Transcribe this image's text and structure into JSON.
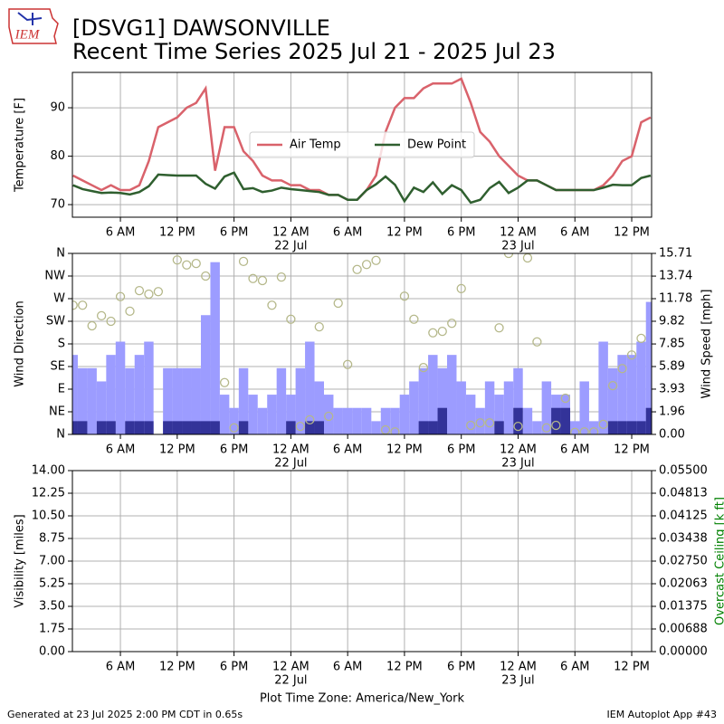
{
  "header": {
    "title": "[DSVG1] DAWSONVILLE",
    "subtitle": "Recent Time Series 2025 Jul 21 - 2025 Jul 23",
    "logo_text": "IEM"
  },
  "footer": {
    "generated": "Generated at 23 Jul 2025 2:00 PM CDT in 0.65s",
    "app": "IEM Autoplot App #43"
  },
  "chart_data": [
    {
      "type": "line",
      "ylabel": "Temperature [F]",
      "grid": true,
      "legend": "center",
      "x": [
        1,
        2,
        3,
        4,
        5,
        6,
        7,
        8,
        9,
        10,
        11,
        12,
        13,
        14,
        15,
        16,
        17,
        18,
        19,
        20,
        21,
        22,
        23,
        24,
        25,
        26,
        27,
        28,
        29,
        30,
        31,
        32,
        33,
        34,
        35,
        36,
        37,
        38,
        39,
        40,
        41,
        42,
        43,
        44,
        45,
        46,
        47,
        48,
        49,
        50,
        51,
        52,
        53,
        54,
        55,
        56,
        57,
        58,
        59,
        60,
        61,
        62
      ],
      "xlim": [
        0.93,
        62.1
      ],
      "xticks": [
        {
          "value": 6,
          "label": "6 AM"
        },
        {
          "value": 12,
          "label": "12 PM"
        },
        {
          "value": 18,
          "label": "6 PM"
        },
        {
          "value": 24,
          "label": "12 AM"
        },
        {
          "value": 30,
          "label": "6 AM"
        },
        {
          "value": 36,
          "label": "12 PM"
        },
        {
          "value": 42,
          "label": "6 PM"
        },
        {
          "value": 48,
          "label": "12 AM"
        },
        {
          "value": 54,
          "label": "6 AM"
        },
        {
          "value": 60,
          "label": "12 PM"
        }
      ],
      "xtick_dates": [
        {
          "value": 24,
          "label": "22 Jul"
        },
        {
          "value": 48,
          "label": "23 Jul"
        }
      ],
      "ylim": [
        67.4,
        97.3
      ],
      "yticks": [
        70,
        80,
        90
      ],
      "series": [
        {
          "name": "Air Temp",
          "color": "#d9626b",
          "values": [
            76,
            75,
            74,
            73,
            74,
            73,
            73,
            74,
            79,
            86,
            87,
            88,
            90,
            91,
            94,
            77,
            86,
            86,
            81,
            79,
            76,
            75,
            75,
            74,
            74,
            73,
            73,
            72,
            72,
            71,
            71,
            73,
            76,
            85,
            90,
            92,
            92,
            94,
            95,
            95,
            95,
            96,
            91,
            85,
            83,
            80,
            78,
            76,
            75,
            75,
            74,
            73,
            73,
            73,
            73,
            73,
            74,
            76,
            79,
            80,
            87,
            88
          ]
        },
        {
          "name": "Dew Point",
          "color": "#2f5f2f",
          "values": [
            74,
            73.2,
            72.8,
            72.4,
            72.5,
            72.4,
            72.1,
            72.6,
            73.8,
            76.2,
            76.1,
            76,
            76,
            76,
            74.3,
            73.3,
            75.8,
            76.6,
            73.2,
            73.4,
            72.6,
            72.9,
            73.5,
            73.2,
            73,
            72.8,
            72.6,
            72,
            72,
            71,
            71,
            73,
            74.2,
            75.8,
            74.1,
            70.7,
            73.5,
            72.6,
            74.6,
            72.2,
            74,
            73,
            70.4,
            71,
            73.4,
            74.7,
            72.4,
            73.5,
            75,
            75,
            74,
            73,
            73,
            73,
            73,
            73,
            73.5,
            74.1,
            74,
            74,
            75.5,
            76
          ]
        }
      ]
    },
    {
      "type": "bar",
      "ylabel": "Wind Direction",
      "y2label": "Wind Speed [mph]",
      "grid": true,
      "x": [
        1,
        2,
        3,
        4,
        5,
        6,
        7,
        8,
        9,
        10,
        11,
        12,
        13,
        14,
        15,
        16,
        17,
        18,
        19,
        20,
        21,
        22,
        23,
        24,
        25,
        26,
        27,
        28,
        29,
        30,
        31,
        32,
        33,
        34,
        35,
        36,
        37,
        38,
        39,
        40,
        41,
        42,
        43,
        44,
        45,
        46,
        47,
        48,
        49,
        50,
        51,
        52,
        53,
        54,
        55,
        56,
        57,
        58,
        59,
        60,
        61,
        62
      ],
      "xlim": [
        0.93,
        62.1
      ],
      "xticks": [
        {
          "value": 6,
          "label": "6 AM"
        },
        {
          "value": 12,
          "label": "12 PM"
        },
        {
          "value": 18,
          "label": "6 PM"
        },
        {
          "value": 24,
          "label": "12 AM"
        },
        {
          "value": 30,
          "label": "6 AM"
        },
        {
          "value": 36,
          "label": "12 PM"
        },
        {
          "value": 42,
          "label": "6 PM"
        },
        {
          "value": 48,
          "label": "12 AM"
        },
        {
          "value": 54,
          "label": "6 AM"
        },
        {
          "value": 60,
          "label": "12 PM"
        }
      ],
      "xtick_dates": [
        {
          "value": 24,
          "label": "22 Jul"
        },
        {
          "value": 48,
          "label": "23 Jul"
        }
      ],
      "ylim": [
        0,
        360
      ],
      "yticks": [
        {
          "value": 0,
          "label": "N"
        },
        {
          "value": 45,
          "label": "NE"
        },
        {
          "value": 90,
          "label": "E"
        },
        {
          "value": 135,
          "label": "SE"
        },
        {
          "value": 180,
          "label": "S"
        },
        {
          "value": 225,
          "label": "SW"
        },
        {
          "value": 270,
          "label": "W"
        },
        {
          "value": 315,
          "label": "NW"
        },
        {
          "value": 360,
          "label": "N"
        }
      ],
      "y2lim": [
        0,
        15.71
      ],
      "y2ticks": [
        {
          "value": 0,
          "label": "0.00"
        },
        1.96,
        3.93,
        5.89,
        7.85,
        9.82,
        11.78,
        13.74,
        15.71
      ],
      "series": [
        {
          "color": "#9c9cff",
          "axis": "y2",
          "values": [
            6.9,
            5.75,
            5.75,
            4.6,
            6.9,
            8.05,
            5.75,
            6.9,
            8.05,
            0,
            5.75,
            5.75,
            5.75,
            5.75,
            10.35,
            14.95,
            3.45,
            2.3,
            5.75,
            3.45,
            2.3,
            3.45,
            5.75,
            3.45,
            5.75,
            8.05,
            4.6,
            3.45,
            2.3,
            2.3,
            2.3,
            2.3,
            1.15,
            2.3,
            2.3,
            3.45,
            4.6,
            5.75,
            6.9,
            5.75,
            6.9,
            4.6,
            3.45,
            2.3,
            4.6,
            3.45,
            4.6,
            5.75,
            2.3,
            1.15,
            4.6,
            3.45,
            3.45,
            1.15,
            4.6,
            1.15,
            8.05,
            5.75,
            6.9,
            6.9,
            8.05,
            11.5
          ]
        },
        {
          "color": "#333399",
          "axis": "y2",
          "values": [
            1.15,
            1.15,
            0,
            1.15,
            1.15,
            0,
            1.15,
            1.15,
            1.15,
            0,
            1.15,
            1.15,
            1.15,
            1.15,
            1.15,
            1.15,
            0,
            0,
            1.15,
            0,
            0,
            0,
            0,
            1.15,
            0,
            1.15,
            1.15,
            0,
            0,
            0,
            0,
            0,
            0,
            0,
            0,
            0,
            0,
            1.15,
            1.15,
            2.3,
            0,
            0,
            0,
            0,
            0,
            1.15,
            0,
            2.3,
            0,
            0,
            0,
            2.3,
            2.3,
            0,
            0,
            0,
            0,
            1.15,
            1.15,
            1.15,
            1.15,
            2.3
          ]
        }
      ],
      "scatter": {
        "color": "#b5b88a",
        "values": [
          257,
          257,
          216,
          236,
          225,
          274,
          245,
          286,
          279,
          284,
          null,
          347,
          337,
          340,
          315,
          null,
          103,
          13,
          344,
          310,
          306,
          257,
          313,
          229,
          16,
          29,
          214,
          36,
          261,
          139,
          328,
          338,
          346,
          9,
          5,
          275,
          229,
          133,
          202,
          205,
          221,
          290,
          18,
          23,
          23,
          212,
          360,
          16,
          351,
          184,
          13,
          18,
          72,
          4,
          5,
          5,
          20,
          97,
          131,
          158,
          191,
          null
        ]
      }
    },
    {
      "type": "line",
      "ylabel": "Visibility [miles]",
      "y2label": "Overcast Ceiling [k ft]",
      "y2label_color": "#008000",
      "xlabel": "Plot Time Zone: America/New_York",
      "grid": true,
      "xlim": [
        0.93,
        62.1
      ],
      "xticks": [
        {
          "value": 6,
          "label": "6 AM"
        },
        {
          "value": 12,
          "label": "12 PM"
        },
        {
          "value": 18,
          "label": "6 PM"
        },
        {
          "value": 24,
          "label": "12 AM"
        },
        {
          "value": 30,
          "label": "6 AM"
        },
        {
          "value": 36,
          "label": "12 PM"
        },
        {
          "value": 42,
          "label": "6 PM"
        },
        {
          "value": 48,
          "label": "12 AM"
        },
        {
          "value": 54,
          "label": "6 AM"
        },
        {
          "value": 60,
          "label": "12 PM"
        }
      ],
      "xtick_dates": [
        {
          "value": 24,
          "label": "22 Jul"
        },
        {
          "value": 48,
          "label": "23 Jul"
        }
      ],
      "ylim": [
        0,
        14
      ],
      "yticks": [
        {
          "value": 0,
          "label": "0.00"
        },
        1.75,
        {
          "value": 3.5,
          "label": "3.50"
        },
        5.25,
        {
          "value": 7,
          "label": "7.00"
        },
        8.75,
        {
          "value": 10.5,
          "label": "10.50"
        },
        12.25,
        {
          "value": 14,
          "label": "14.00"
        }
      ],
      "y2lim": [
        0,
        0.055
      ],
      "y2ticks": [
        {
          "value": 0,
          "label": "0.00000"
        },
        {
          "value": 0.006875,
          "label": "0.00688"
        },
        {
          "value": 0.01375,
          "label": "0.01375"
        },
        {
          "value": 0.020625,
          "label": "0.02063"
        },
        {
          "value": 0.0275,
          "label": "0.02750"
        },
        {
          "value": 0.034375,
          "label": "0.03438"
        },
        {
          "value": 0.04125,
          "label": "0.04125"
        },
        {
          "value": 0.048125,
          "label": "0.04813"
        },
        {
          "value": 0.055,
          "label": "0.05500"
        }
      ],
      "series": []
    }
  ]
}
